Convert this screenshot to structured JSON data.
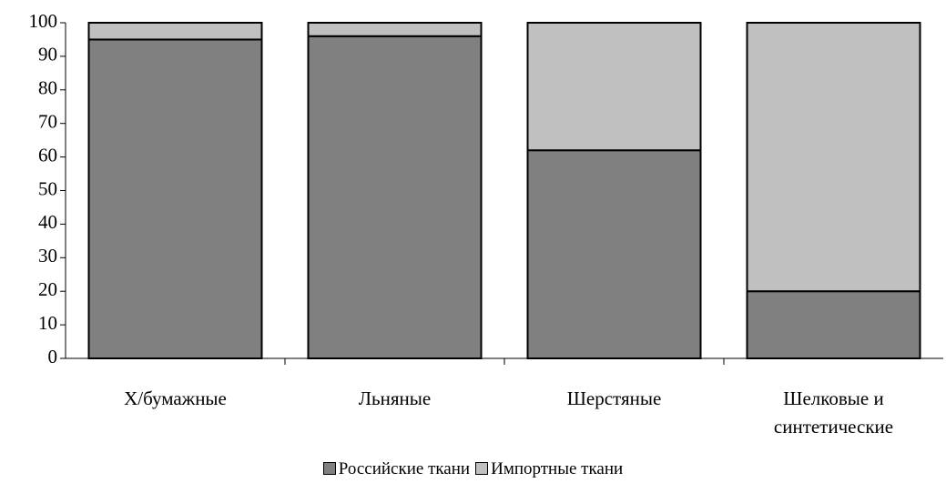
{
  "chart_data": {
    "type": "stacked_bar",
    "categories": [
      "Х/бумажные",
      "Льняные",
      "Шерстяные",
      "Шелковые и синтетические"
    ],
    "series": [
      {
        "name": "Российские ткани",
        "color": "#808080",
        "values": [
          95,
          96,
          62,
          20
        ]
      },
      {
        "name": "Импортные ткани",
        "color": "#c0c0c0",
        "values": [
          5,
          4,
          38,
          80
        ]
      }
    ],
    "ylim": [
      0,
      100
    ],
    "yticks": [
      0,
      10,
      20,
      30,
      40,
      50,
      60,
      70,
      80,
      90,
      100
    ],
    "legend": "bottom"
  }
}
